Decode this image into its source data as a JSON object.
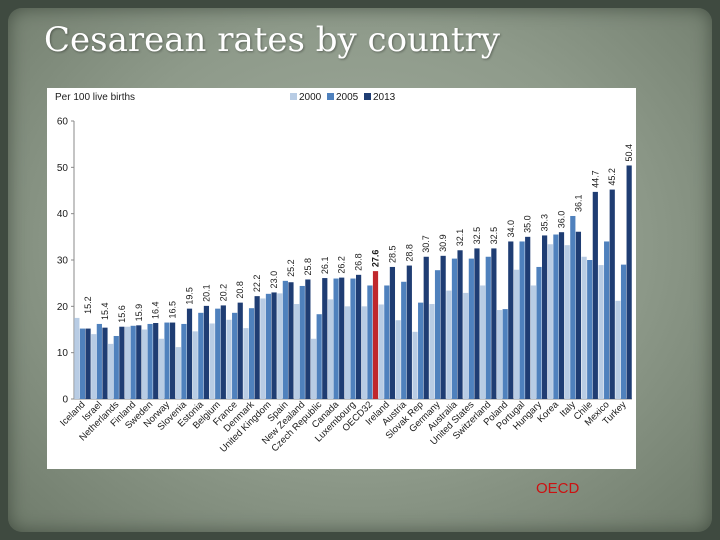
{
  "slide": {
    "title": "Cesarean rates by country",
    "source": "OECD"
  },
  "chart_data": {
    "type": "bar",
    "unit_label": "Per 100 live births",
    "ylim": [
      0,
      60
    ],
    "yticks": [
      0,
      10,
      20,
      30,
      40,
      50,
      60
    ],
    "grid": false,
    "legend_position": "top-center",
    "categories": [
      "Iceland",
      "Israel",
      "Netherlands",
      "Finland",
      "Sweden",
      "Norway",
      "Slovenia",
      "Estonia",
      "Belgium",
      "France",
      "Denmark",
      "United Kingdom",
      "Spain",
      "New Zealand",
      "Czech Republic",
      "Canada",
      "Luxembourg",
      "OECD32",
      "Ireland",
      "Austria",
      "Slovak Rep",
      "Germany",
      "Australia",
      "United States",
      "Switzerland",
      "Poland",
      "Portugal",
      "Hungary",
      "Korea",
      "Italy",
      "Chile",
      "Mexico",
      "Turkey"
    ],
    "series": [
      {
        "name": "2000",
        "color": "#b8cce4",
        "values": [
          17.5,
          14.0,
          11.9,
          15.6,
          15.0,
          13.0,
          11.2,
          14.6,
          16.3,
          17.1,
          15.3,
          21.7,
          22.8,
          20.5,
          13.0,
          21.5,
          20.0,
          20.0,
          20.4,
          17.0,
          14.5,
          20.5,
          23.4,
          22.9,
          24.5,
          19.2,
          27.9,
          24.5,
          33.4,
          33.2,
          30.7,
          28.9,
          21.2
        ]
      },
      {
        "name": "2005",
        "color": "#4f81bd",
        "values": [
          15.2,
          16.2,
          13.6,
          15.8,
          16.2,
          16.5,
          16.2,
          18.6,
          19.5,
          18.6,
          19.6,
          22.7,
          25.5,
          24.4,
          18.3,
          26.0,
          26.0,
          24.5,
          24.5,
          25.3,
          20.8,
          27.8,
          30.3,
          30.3,
          30.7,
          19.4,
          34.0,
          28.5,
          35.5,
          39.5,
          30.0,
          34.0,
          29.0
        ]
      },
      {
        "name": "2013",
        "color": "#1f3d73",
        "values": [
          15.2,
          15.4,
          15.6,
          15.9,
          16.4,
          16.5,
          19.5,
          20.1,
          20.2,
          20.8,
          22.2,
          23.0,
          25.2,
          25.8,
          26.1,
          26.2,
          26.8,
          27.6,
          28.5,
          28.8,
          30.7,
          30.9,
          32.1,
          32.5,
          32.5,
          34.0,
          35.0,
          35.3,
          36.0,
          36.1,
          44.7,
          45.2,
          50.4
        ]
      }
    ],
    "highlight": {
      "category": "OECD32",
      "color": "#c0282d"
    },
    "value_labels": [
      "15.2",
      "15.4",
      "15.6",
      "15.9",
      "16.4",
      "16.5",
      "19.5",
      "20.1",
      "20.2",
      "20.8",
      "22.2",
      "23.0",
      "25.2",
      "25.8",
      "26.1",
      "26.2",
      "26.8",
      "27.6",
      "28.5",
      "28.8",
      "30.7",
      "30.9",
      "32.1",
      "32.5",
      "32.5",
      "34.0",
      "35.0",
      "35.3",
      "36.0",
      "36.1",
      "44.7",
      "45.2",
      "50.4"
    ]
  }
}
